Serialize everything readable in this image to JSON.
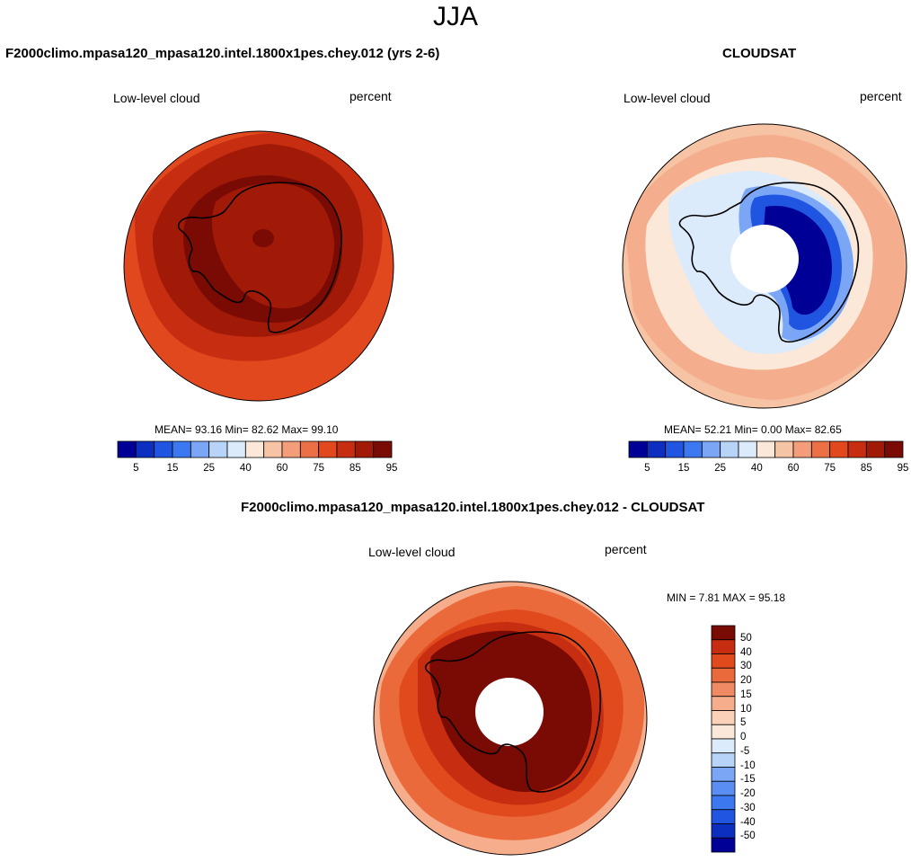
{
  "page_title": "JJA",
  "colors": {
    "abs_palette": [
      "#000096",
      "#0d2fc0",
      "#1f55e0",
      "#3c78f0",
      "#7aa6f5",
      "#b8d3f8",
      "#dcebfb",
      "#fbe8d8",
      "#f7c3a5",
      "#f39d7b",
      "#ec7045",
      "#e1481e",
      "#c72d10",
      "#a11a08",
      "#7a0a04"
    ],
    "diff_palette": [
      "#000096",
      "#0d2fc0",
      "#1f55e0",
      "#3c78f0",
      "#5a8ef2",
      "#7aa6f5",
      "#b8d3f8",
      "#dcebfb",
      "#fbe8d8",
      "#f9d2b8",
      "#f5ad8c",
      "#f08a64",
      "#ea6a3c",
      "#e04a1c",
      "#c72d10",
      "#7a0a04"
    ],
    "land_outline": "#000000"
  },
  "panels": {
    "model": {
      "title": "F2000climo.mpasa120_mpasa120.intel.1800x1pes.chey.012 (yrs 2-6)",
      "left_label": "Low-level cloud",
      "right_label": "percent",
      "stats": "MEAN=  93.16  Min=  82.62  Max=  99.10"
    },
    "obs": {
      "title": "CLOUDSAT",
      "left_label": "Low-level cloud",
      "right_label": "percent",
      "stats": "MEAN=  52.21  Min=   0.00  Max=  82.65"
    },
    "diff": {
      "title": "F2000climo.mpasa120_mpasa120.intel.1800x1pes.chey.012 - CLOUDSAT",
      "left_label": "Low-level cloud",
      "right_label": "percent",
      "stats": "MIN =   7.81 MAX =  95.18"
    }
  },
  "chart_data": [
    {
      "type": "heatmap",
      "projection": "south-polar-stereographic",
      "panel": "model",
      "variable": "Low-level cloud",
      "units": "percent",
      "mean": 93.16,
      "min": 82.62,
      "max": 99.1,
      "colorbar": {
        "orientation": "horizontal",
        "levels": [
          5,
          10,
          15,
          20,
          25,
          30,
          40,
          50,
          60,
          70,
          75,
          80,
          85,
          90,
          95
        ],
        "tick_labels": [
          "5",
          "15",
          "25",
          "40",
          "60",
          "75",
          "85",
          "95"
        ]
      },
      "field_regions": [
        {
          "region": "outer ocean ring",
          "value": 87
        },
        {
          "region": "mid-latitude ring",
          "value": 93
        },
        {
          "region": "Antarctic continent",
          "value": 92
        },
        {
          "region": "Southern Ocean band",
          "value": 97
        }
      ]
    },
    {
      "type": "heatmap",
      "projection": "south-polar-stereographic",
      "panel": "obs",
      "variable": "Low-level cloud",
      "units": "percent",
      "mean": 52.21,
      "min": 0.0,
      "max": 82.65,
      "colorbar": {
        "orientation": "horizontal",
        "levels": [
          5,
          10,
          15,
          20,
          25,
          30,
          40,
          50,
          60,
          70,
          75,
          80,
          85,
          90,
          95
        ],
        "tick_labels": [
          "5",
          "15",
          "25",
          "40",
          "60",
          "75",
          "85",
          "95"
        ]
      },
      "field_regions": [
        {
          "region": "outer ocean ring",
          "value": 72
        },
        {
          "region": "Southern Ocean band",
          "value": 58
        },
        {
          "region": "coastal Antarctica",
          "value": 35
        },
        {
          "region": "East Antarctic plateau",
          "value": 5
        },
        {
          "region": "polar gap (no data)",
          "value": null
        }
      ]
    },
    {
      "type": "heatmap",
      "projection": "south-polar-stereographic",
      "panel": "diff",
      "variable": "Low-level cloud",
      "units": "percent",
      "min": 7.81,
      "max": 95.18,
      "colorbar": {
        "orientation": "vertical",
        "levels": [
          -50,
          -40,
          -30,
          -20,
          -15,
          -10,
          -5,
          0,
          5,
          10,
          15,
          20,
          30,
          40,
          50
        ],
        "tick_labels": [
          "50",
          "40",
          "30",
          "20",
          "15",
          "10",
          "5",
          "0",
          "-5",
          "-10",
          "-15",
          "-20",
          "-30",
          "-40",
          "-50"
        ]
      },
      "field_regions": [
        {
          "region": "outer ocean ring",
          "value": 22
        },
        {
          "region": "Southern Ocean band",
          "value": 35
        },
        {
          "region": "coastal Antarctica",
          "value": 45
        },
        {
          "region": "Antarctic continent",
          "value": 60
        },
        {
          "region": "polar gap (no data)",
          "value": null
        }
      ]
    }
  ]
}
